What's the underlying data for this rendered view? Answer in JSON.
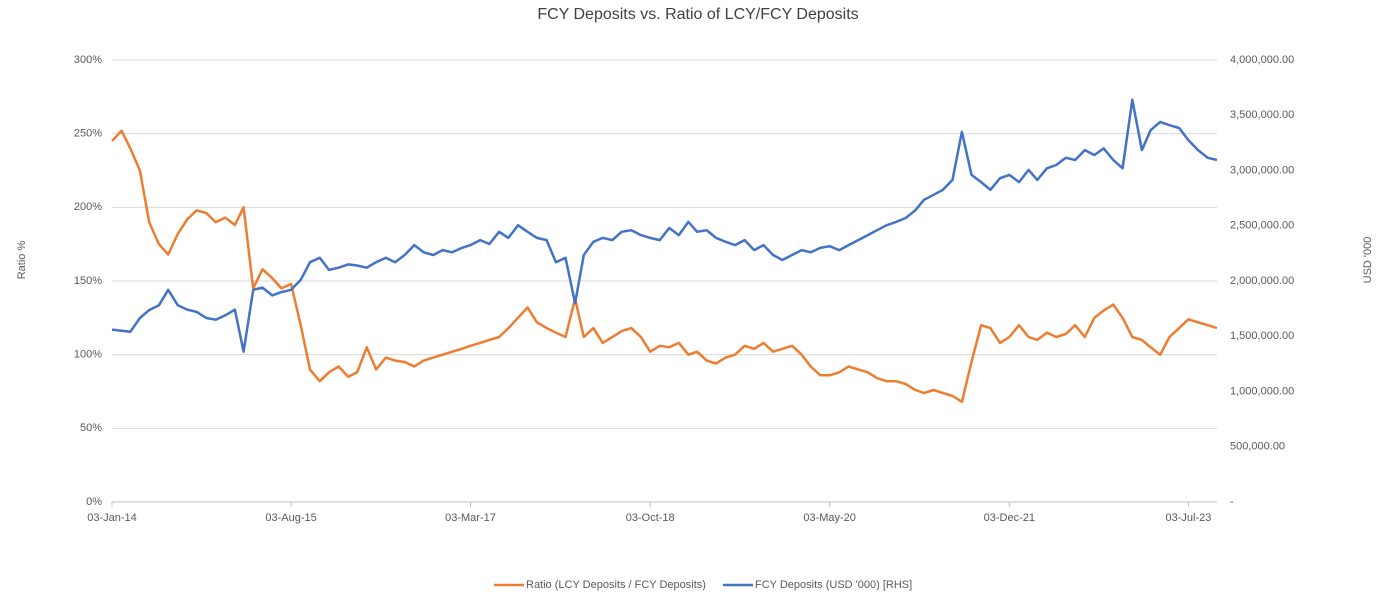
{
  "chart_data": {
    "type": "line",
    "title": "FCY Deposits vs. Ratio of LCY/FCY Deposits",
    "ylabel": "Ratio %",
    "y2label": "USD '000",
    "x": [
      "2014-01-03",
      "2014-02-03",
      "2014-03-03",
      "2014-04-03",
      "2014-05-03",
      "2014-06-03",
      "2014-07-03",
      "2014-08-03",
      "2014-09-03",
      "2014-10-03",
      "2014-11-03",
      "2014-12-03",
      "2015-01-03",
      "2015-02-03",
      "2015-03-03",
      "2015-04-03",
      "2015-05-03",
      "2015-06-03",
      "2015-07-03",
      "2015-08-03",
      "2015-09-03",
      "2015-10-03",
      "2015-11-03",
      "2015-12-03",
      "2016-01-03",
      "2016-02-03",
      "2016-03-03",
      "2016-04-03",
      "2016-05-03",
      "2016-06-03",
      "2016-07-03",
      "2016-08-03",
      "2016-09-03",
      "2016-10-03",
      "2016-11-03",
      "2016-12-03",
      "2017-01-03",
      "2017-02-03",
      "2017-03-03",
      "2017-04-03",
      "2017-05-03",
      "2017-06-03",
      "2017-07-03",
      "2017-08-03",
      "2017-09-03",
      "2017-10-03",
      "2017-11-03",
      "2017-12-03",
      "2018-01-03",
      "2018-02-03",
      "2018-03-03",
      "2018-04-03",
      "2018-05-03",
      "2018-06-03",
      "2018-07-03",
      "2018-08-03",
      "2018-09-03",
      "2018-10-03",
      "2018-11-03",
      "2018-12-03",
      "2019-01-03",
      "2019-02-03",
      "2019-03-03",
      "2019-04-03",
      "2019-05-03",
      "2019-06-03",
      "2019-07-03",
      "2019-08-03",
      "2019-09-03",
      "2019-10-03",
      "2019-11-03",
      "2019-12-03",
      "2020-01-03",
      "2020-02-03",
      "2020-03-03",
      "2020-04-03",
      "2020-05-03",
      "2020-06-03",
      "2020-07-03",
      "2020-08-03",
      "2020-09-03",
      "2020-10-03",
      "2020-11-03",
      "2020-12-03",
      "2021-01-03",
      "2021-02-03",
      "2021-03-03",
      "2021-04-03",
      "2021-05-03",
      "2021-06-03",
      "2021-07-03",
      "2021-08-03",
      "2021-09-03",
      "2021-10-03",
      "2021-11-03",
      "2021-12-03",
      "2022-01-03",
      "2022-02-03",
      "2022-03-03",
      "2022-04-03",
      "2022-05-03",
      "2022-06-03",
      "2022-07-03",
      "2022-08-03",
      "2022-09-03",
      "2022-10-03",
      "2022-11-03",
      "2022-12-03",
      "2023-01-03",
      "2023-02-03",
      "2023-03-03",
      "2023-04-03",
      "2023-05-03",
      "2023-06-03",
      "2023-07-03",
      "2023-08-03",
      "2023-09-03",
      "2023-10-03"
    ],
    "series": [
      {
        "name": "Ratio (LCY Deposits / FCY Deposits)",
        "color": "#ed7d31",
        "values": [
          245,
          252,
          240,
          225,
          190,
          175,
          168,
          182,
          192,
          198,
          196,
          190,
          193,
          188,
          200,
          145,
          158,
          152,
          145,
          148,
          120,
          90,
          82,
          88,
          92,
          85,
          88,
          105,
          90,
          98,
          96,
          95,
          92,
          96,
          98,
          100,
          102,
          104,
          106,
          108,
          110,
          112,
          118,
          125,
          132,
          122,
          118,
          115,
          112,
          138,
          112,
          118,
          108,
          112,
          116,
          118,
          112,
          102,
          106,
          105,
          108,
          100,
          102,
          96,
          94,
          98,
          100,
          106,
          104,
          108,
          102,
          104,
          106,
          100,
          92,
          86,
          86,
          88,
          92,
          90,
          88,
          84,
          82,
          82,
          80,
          76,
          74,
          76,
          74,
          72,
          68,
          95,
          120,
          118,
          108,
          112,
          120,
          112,
          110,
          115,
          112,
          114,
          120,
          112,
          125,
          130,
          134,
          125,
          112,
          110,
          105,
          100,
          112,
          118,
          124,
          122,
          120,
          118
        ]
      },
      {
        "name": "FCY Deposits (USD '000) [RHS]",
        "color": "#4472c4",
        "axis": "y2",
        "values": [
          1560000,
          1550000,
          1540000,
          1665000,
          1737000,
          1780000,
          1920000,
          1780000,
          1740000,
          1720000,
          1665000,
          1650000,
          1690000,
          1740000,
          1360000,
          1920000,
          1940000,
          1870000,
          1900000,
          1920000,
          2010000,
          2170000,
          2210000,
          2100000,
          2120000,
          2150000,
          2140000,
          2120000,
          2170000,
          2210000,
          2170000,
          2235000,
          2325000,
          2260000,
          2235000,
          2280000,
          2260000,
          2300000,
          2325000,
          2370000,
          2335000,
          2445000,
          2390000,
          2505000,
          2445000,
          2390000,
          2370000,
          2170000,
          2210000,
          1800000,
          2235000,
          2355000,
          2390000,
          2370000,
          2445000,
          2460000,
          2415000,
          2390000,
          2370000,
          2480000,
          2415000,
          2535000,
          2445000,
          2460000,
          2390000,
          2355000,
          2325000,
          2370000,
          2280000,
          2325000,
          2235000,
          2190000,
          2235000,
          2280000,
          2260000,
          2300000,
          2315000,
          2280000,
          2325000,
          2370000,
          2415000,
          2460000,
          2505000,
          2535000,
          2570000,
          2640000,
          2735000,
          2780000,
          2825000,
          2915000,
          3350000,
          2960000,
          2895000,
          2825000,
          2930000,
          2960000,
          2895000,
          3005000,
          2915000,
          3020000,
          3050000,
          3115000,
          3095000,
          3185000,
          3140000,
          3200000,
          3095000,
          3020000,
          3640000,
          3185000,
          3365000,
          3440000,
          3410000,
          3385000,
          3275000,
          3185000,
          3115000,
          3095000
        ]
      }
    ],
    "xlim": [
      "2014-01-03",
      "2023-10-03"
    ],
    "xticks": [
      {
        "value": "2014-01-03",
        "label": "03-Jan-14"
      },
      {
        "value": "2015-08-03",
        "label": "03-Aug-15"
      },
      {
        "value": "2017-03-03",
        "label": "03-Mar-17"
      },
      {
        "value": "2018-10-03",
        "label": "03-Oct-18"
      },
      {
        "value": "2020-05-03",
        "label": "03-May-20"
      },
      {
        "value": "2021-12-03",
        "label": "03-Dec-21"
      },
      {
        "value": "2023-07-03",
        "label": "03-Jul-23"
      }
    ],
    "ylim": [
      0,
      300
    ],
    "yticks": [
      {
        "value": 0,
        "label": "0%"
      },
      {
        "value": 50,
        "label": "50%"
      },
      {
        "value": 100,
        "label": "100%"
      },
      {
        "value": 150,
        "label": "150%"
      },
      {
        "value": 200,
        "label": "200%"
      },
      {
        "value": 250,
        "label": "250%"
      },
      {
        "value": 300,
        "label": "300%"
      }
    ],
    "y2lim": [
      0,
      4000000
    ],
    "y2ticks": [
      {
        "value": 0,
        "label": "-"
      },
      {
        "value": 500000,
        "label": "500,000.00"
      },
      {
        "value": 1000000,
        "label": "1,000,000.00"
      },
      {
        "value": 1500000,
        "label": "1,500,000.00"
      },
      {
        "value": 2000000,
        "label": "2,000,000.00"
      },
      {
        "value": 2500000,
        "label": "2,500,000.00"
      },
      {
        "value": 3000000,
        "label": "3,000,000.00"
      },
      {
        "value": 3500000,
        "label": "3,500,000.00"
      },
      {
        "value": 4000000,
        "label": "4,000,000.00"
      }
    ],
    "grid": true,
    "legend": "bottom"
  }
}
